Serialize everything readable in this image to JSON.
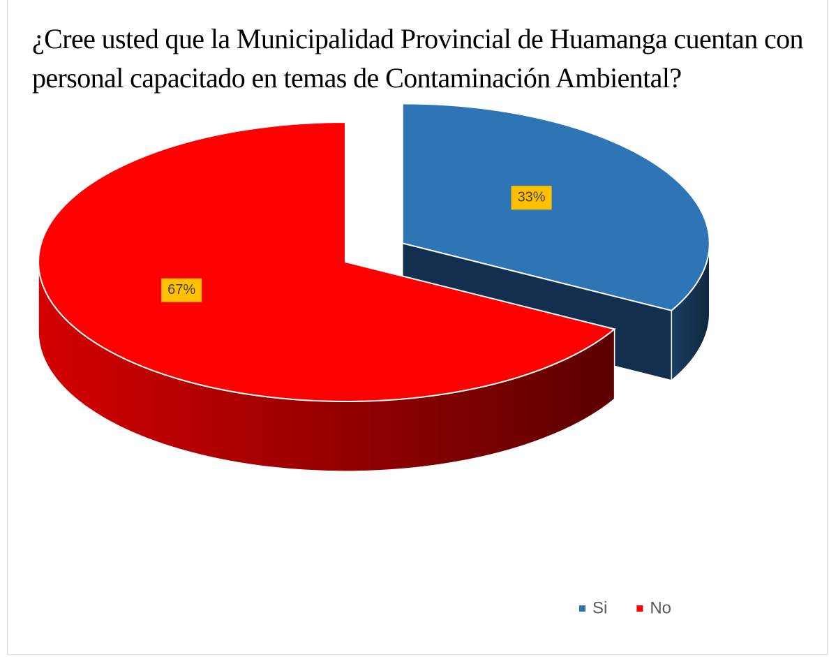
{
  "chart_data": {
    "type": "pie3d",
    "title": "¿Cree usted que la Municipalidad Provincial de Huamanga cuentan con personal capacitado en temas de Contaminación Ambiental?",
    "categories": [
      "Si",
      "No"
    ],
    "values": [
      33,
      67
    ],
    "value_labels": [
      "33%",
      "67%"
    ],
    "colors": [
      "#2e75b6",
      "#ff0000"
    ],
    "legend": "bottom-right"
  }
}
